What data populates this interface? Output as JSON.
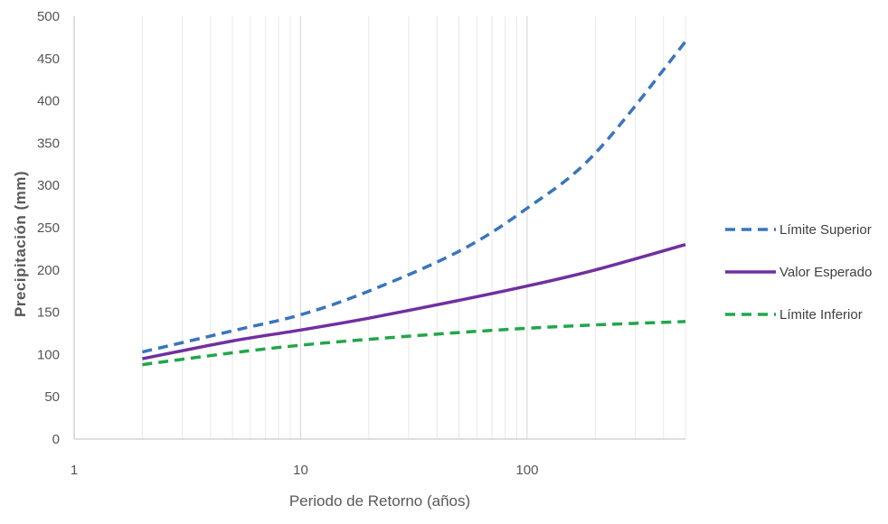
{
  "chart_data": {
    "type": "line",
    "title": "",
    "xlabel": "Periodo de Retorno (años)",
    "ylabel": "Precipitación (mm)",
    "x_scale": "log",
    "xlim": [
      1,
      500
    ],
    "ylim": [
      0,
      500
    ],
    "x_ticks": [
      1,
      10,
      100
    ],
    "y_ticks": [
      0,
      50,
      100,
      150,
      200,
      250,
      300,
      350,
      400,
      450,
      500
    ],
    "x": [
      2,
      5,
      10,
      20,
      50,
      100,
      200,
      500
    ],
    "series": [
      {
        "name": "Límite Superior",
        "style": "dashed",
        "color": "#3a75bd",
        "values": [
          103,
          128,
          147,
          175,
          222,
          273,
          338,
          470
        ]
      },
      {
        "name": "Valor Esperado",
        "style": "solid",
        "color": "#7030a0",
        "values": [
          95,
          116,
          129,
          143,
          164,
          181,
          200,
          230
        ]
      },
      {
        "name": "Límite Inferior",
        "style": "dashed",
        "color": "#22a64a",
        "values": [
          88,
          102,
          111,
          118,
          126,
          131,
          135,
          139
        ]
      }
    ],
    "grid": {
      "x": true,
      "y": false
    },
    "legend_position": "right"
  }
}
